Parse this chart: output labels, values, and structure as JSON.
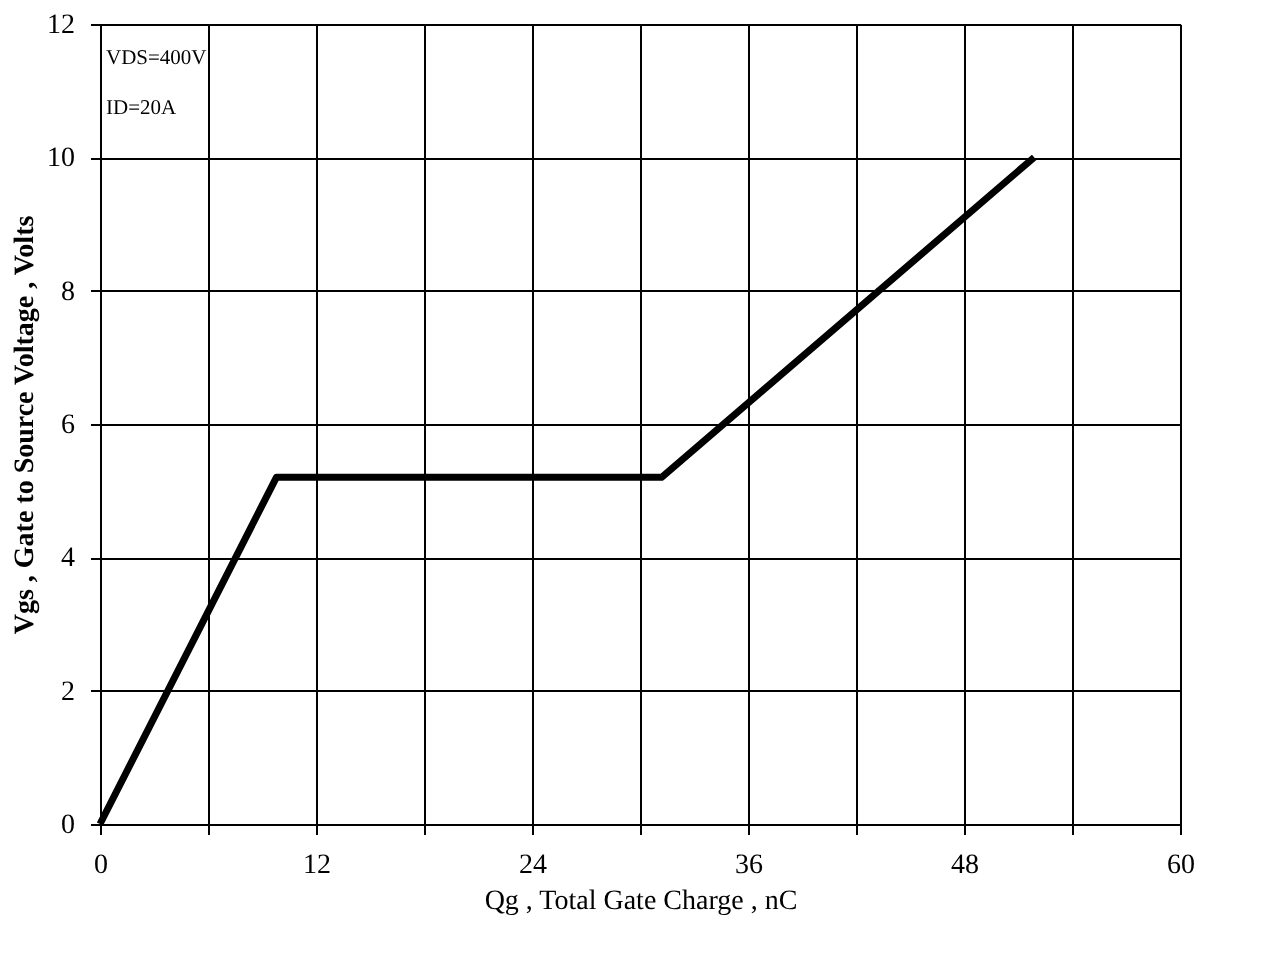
{
  "chart_data": {
    "type": "line",
    "xlabel": "Qg , Total Gate Charge , nC",
    "ylabel": "Vgs , Gate to Source Voltage , Volts",
    "x": [
      0,
      9.8,
      31.2,
      51.9
    ],
    "series": [
      {
        "color": "#000000",
        "values": [
          0,
          5.2,
          5.2,
          10
        ]
      }
    ],
    "xlim": [
      0,
      60
    ],
    "ylim": [
      0,
      12
    ],
    "xticks": [
      0,
      {
        "value": 6,
        "label": null
      },
      12,
      {
        "value": 18,
        "label": null
      },
      24,
      {
        "value": 30,
        "label": null
      },
      36,
      {
        "value": 42,
        "label": null
      },
      48,
      {
        "value": 54,
        "label": null
      },
      60
    ],
    "yticks": [
      0,
      2,
      4,
      6,
      8,
      10,
      12
    ],
    "grid": true,
    "marker": "none",
    "line_style": "solid",
    "annotations": [
      "VDS=400V",
      "ID=20A"
    ]
  }
}
